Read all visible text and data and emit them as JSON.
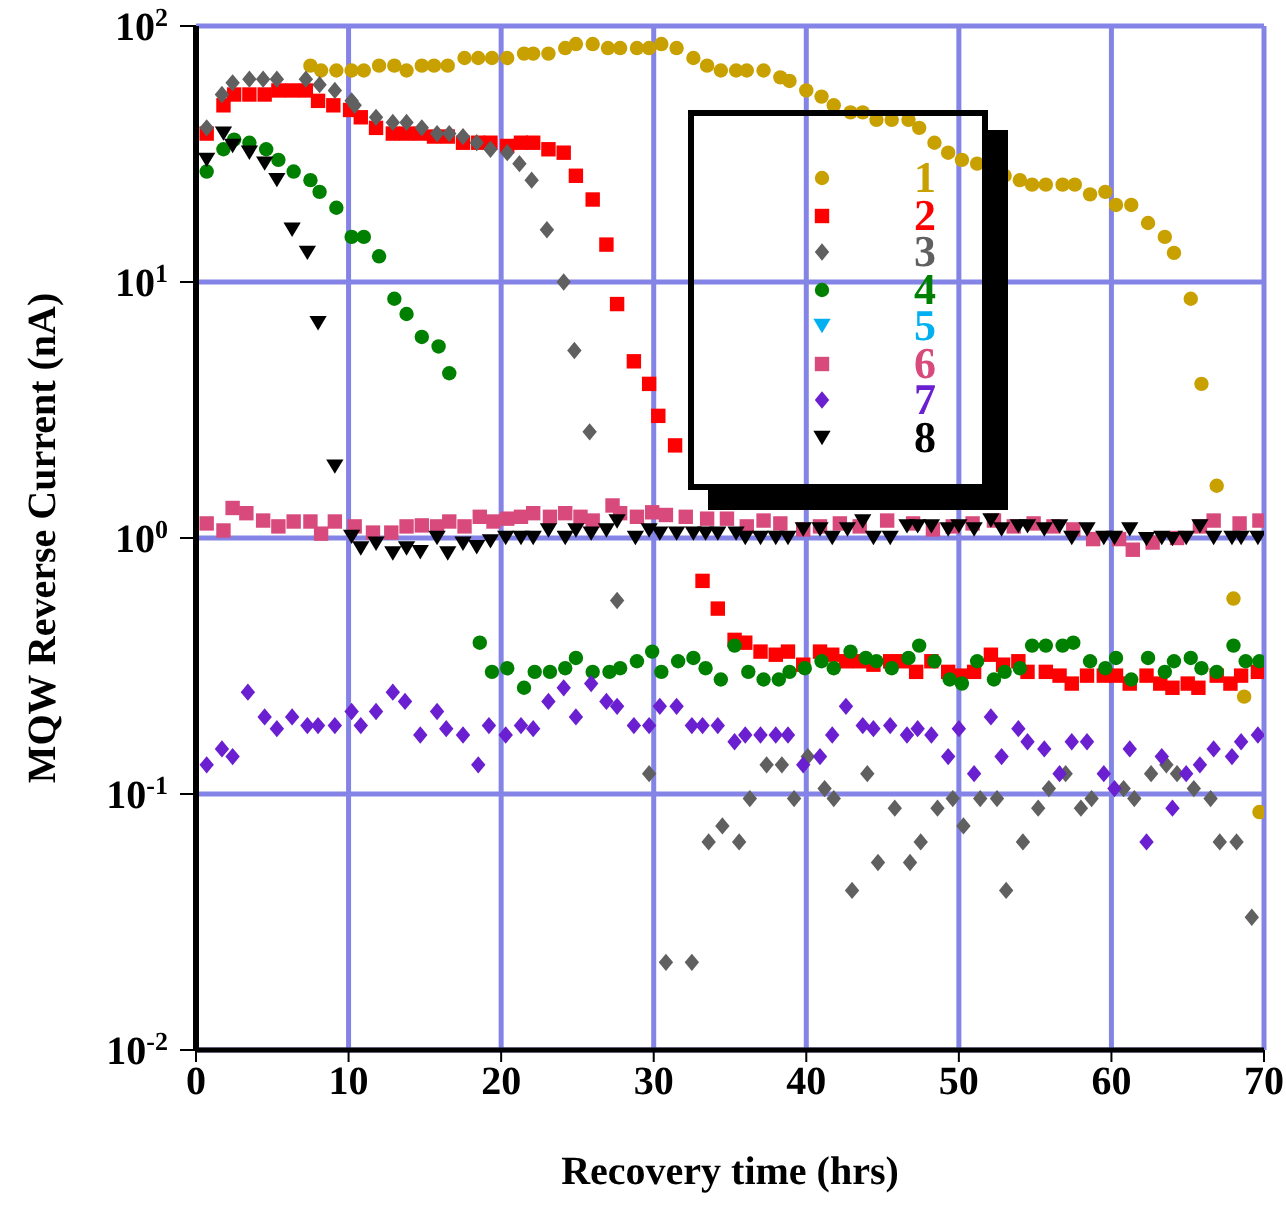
{
  "chart_data": {
    "type": "scatter",
    "xlabel": "Recovery time (hrs)",
    "ylabel": "MQW Reverse Current (nA)",
    "xlim": [
      0,
      70
    ],
    "xticks": [
      0,
      10,
      20,
      30,
      40,
      50,
      60,
      70
    ],
    "ylim": [
      0.01,
      100
    ],
    "log": "y",
    "yticks": [
      {
        "value": 0.01,
        "label": "10$^{-2}$"
      },
      {
        "value": 0.1,
        "label": "10$^{-1}$"
      },
      {
        "value": 1,
        "label": "10$^{0}$"
      },
      {
        "value": 10,
        "label": "10$^{1}$"
      },
      {
        "value": 100,
        "label": "10$^{2}$"
      }
    ],
    "grid": true,
    "legend": "top right",
    "series": [
      {
        "name": "1",
        "color": "#c8a000",
        "marker": "circle",
        "x": [
          7.5,
          8.2,
          9.2,
          10.2,
          11.0,
          12.0,
          13.0,
          13.8,
          14.8,
          15.6,
          16.5,
          17.6,
          18.5,
          19.4,
          20.4,
          21.5,
          22.1,
          23.1,
          24.2,
          24.9,
          26.0,
          27.0,
          27.8,
          28.9,
          29.7,
          30.5,
          31.5,
          32.6,
          33.5,
          34.4,
          35.4,
          36.1,
          37.2,
          38.3,
          38.9,
          40.0,
          41.0,
          41.8,
          42.9,
          43.7,
          44.6,
          45.6,
          46.7,
          47.4,
          48.4,
          49.3,
          50.2,
          51.2,
          53.0,
          54.0,
          54.8,
          55.7,
          56.8,
          57.6,
          58.6,
          59.6,
          60.3,
          61.3,
          62.4,
          63.5,
          64.1,
          65.2,
          65.9,
          66.9,
          68.0,
          68.7,
          69.7
        ],
        "values": [
          70,
          67,
          67,
          67,
          67,
          70,
          70,
          67,
          70,
          70,
          70,
          75,
          75,
          75,
          75,
          78,
          78,
          78,
          82,
          85,
          85,
          82,
          82,
          82,
          82,
          85,
          82,
          75,
          70,
          67,
          67,
          67,
          67,
          63,
          61,
          56,
          53,
          49,
          46,
          46,
          43,
          43,
          43,
          40,
          35,
          32,
          30,
          29,
          26,
          25,
          24,
          24,
          24,
          24,
          22,
          22.5,
          20,
          20,
          17,
          15,
          13,
          8.6,
          4.0,
          1.6,
          0.58,
          0.24,
          0.085
        ]
      },
      {
        "name": "2",
        "color": "#ff0000",
        "marker": "square",
        "x": [
          0.7,
          1.8,
          2.5,
          3.5,
          4.5,
          5.4,
          6.3,
          7.2,
          8.0,
          9.0,
          10.1,
          10.8,
          11.8,
          12.9,
          13.8,
          14.7,
          15.6,
          16.5,
          17.5,
          18.5,
          19.3,
          20.4,
          21.3,
          22.1,
          23.1,
          24.1,
          24.9,
          26.0,
          26.9,
          27.6,
          28.7,
          29.7,
          30.3,
          31.4,
          33.2,
          34.2,
          35.3,
          36.0,
          37.0,
          38.0,
          38.8,
          39.8,
          40.9,
          41.7,
          42.6,
          43.5,
          44.4,
          45.5,
          46.4,
          47.2,
          48.2,
          49.3,
          50.1,
          51.0,
          52.1,
          52.9,
          53.9,
          54.5,
          55.7,
          56.6,
          57.4,
          58.4,
          59.5,
          60.3,
          61.2,
          62.3,
          63.2,
          64.0,
          65.0,
          65.7,
          66.9,
          67.8,
          68.5,
          69.6
        ],
        "values": [
          38,
          49,
          54,
          54,
          54,
          56,
          56,
          56,
          51,
          49,
          47,
          44,
          40,
          38,
          38,
          38,
          37,
          37,
          35,
          35,
          35,
          34,
          35,
          35,
          33,
          32,
          26,
          21,
          14,
          8.2,
          4.9,
          4.0,
          3.0,
          2.3,
          0.68,
          0.53,
          0.4,
          0.39,
          0.36,
          0.35,
          0.36,
          0.32,
          0.36,
          0.35,
          0.33,
          0.33,
          0.32,
          0.33,
          0.33,
          0.3,
          0.33,
          0.3,
          0.29,
          0.3,
          0.35,
          0.32,
          0.33,
          0.3,
          0.3,
          0.29,
          0.27,
          0.29,
          0.29,
          0.29,
          0.27,
          0.29,
          0.27,
          0.26,
          0.27,
          0.26,
          0.29,
          0.27,
          0.29,
          0.3
        ]
      },
      {
        "name": "3",
        "color": "#606060",
        "marker": "diamond",
        "x": [
          0.7,
          1.7,
          2.4,
          3.5,
          4.4,
          5.3,
          7.2,
          8.1,
          9.1,
          10.2,
          10.4,
          11.8,
          12.9,
          13.8,
          14.8,
          15.8,
          16.6,
          17.5,
          18.4,
          19.3,
          20.4,
          21.2,
          22.0,
          23.0,
          24.1,
          24.8,
          25.8,
          27.6,
          29.7,
          30.8,
          32.5,
          33.6,
          34.5,
          35.6,
          36.3,
          37.4,
          38.4,
          39.2,
          40.1,
          41.2,
          41.8,
          43.0,
          44.0,
          44.7,
          45.8,
          46.8,
          47.5,
          48.6,
          49.6,
          50.3,
          51.4,
          52.5,
          53.1,
          54.2,
          55.2,
          55.9,
          57.0,
          58.0,
          58.7,
          60.8,
          61.5,
          62.6,
          63.6,
          64.3,
          65.4,
          66.5,
          67.1,
          68.2,
          69.2
        ],
        "values": [
          40,
          54,
          60,
          62,
          62,
          62,
          62,
          59,
          56,
          51,
          49,
          44,
          42,
          42,
          40,
          38,
          38,
          37,
          35,
          33,
          32,
          29,
          25,
          16,
          10,
          5.4,
          2.6,
          0.57,
          0.12,
          0.022,
          0.022,
          0.065,
          0.075,
          0.065,
          0.096,
          0.13,
          0.13,
          0.096,
          0.14,
          0.105,
          0.096,
          0.042,
          0.12,
          0.054,
          0.088,
          0.054,
          0.065,
          0.088,
          0.096,
          0.075,
          0.096,
          0.096,
          0.042,
          0.065,
          0.088,
          0.105,
          0.12,
          0.088,
          0.096,
          0.105,
          0.096,
          0.12,
          0.13,
          0.12,
          0.105,
          0.096,
          0.065,
          0.065,
          0.033
        ]
      },
      {
        "name": "4",
        "color": "#008000",
        "marker": "circle",
        "x": [
          0.7,
          1.8,
          2.5,
          3.5,
          4.6,
          5.4,
          6.4,
          7.5,
          8.1,
          9.2,
          10.2,
          11.0,
          12.0,
          13.0,
          13.8,
          14.8,
          15.9,
          16.6,
          18.6,
          19.4,
          20.4,
          21.5,
          22.2,
          23.2,
          24.2,
          24.9,
          26.0,
          27.1,
          27.8,
          28.9,
          29.9,
          30.5,
          31.6,
          32.6,
          33.4,
          34.4,
          35.3,
          36.2,
          37.2,
          38.2,
          38.9,
          39.9,
          41.0,
          41.8,
          42.9,
          43.9,
          44.6,
          45.6,
          46.7,
          47.4,
          48.4,
          49.4,
          50.2,
          51.2,
          52.3,
          53.0,
          54.0,
          54.8,
          55.7,
          56.8,
          57.5,
          58.6,
          59.6,
          60.3,
          61.3,
          62.4,
          63.5,
          64.1,
          65.2,
          65.9,
          66.9,
          68.0,
          68.8,
          69.7
        ],
        "values": [
          27,
          33,
          36,
          35,
          33,
          30,
          27,
          25,
          22.5,
          19.5,
          15,
          15,
          12.6,
          8.6,
          7.5,
          6.1,
          5.6,
          4.4,
          0.39,
          0.3,
          0.31,
          0.26,
          0.3,
          0.3,
          0.31,
          0.34,
          0.3,
          0.3,
          0.31,
          0.33,
          0.36,
          0.3,
          0.33,
          0.34,
          0.31,
          0.28,
          0.38,
          0.3,
          0.28,
          0.28,
          0.3,
          0.31,
          0.33,
          0.31,
          0.36,
          0.34,
          0.33,
          0.31,
          0.34,
          0.38,
          0.33,
          0.28,
          0.27,
          0.33,
          0.28,
          0.3,
          0.31,
          0.38,
          0.38,
          0.38,
          0.39,
          0.33,
          0.31,
          0.34,
          0.28,
          0.34,
          0.3,
          0.33,
          0.34,
          0.31,
          0.3,
          0.38,
          0.33,
          0.33
        ]
      },
      {
        "name": "5",
        "color": "#00b0f0",
        "marker": "triangle"
      },
      {
        "name": "6",
        "color": "#d84a7c",
        "marker": "square",
        "x": [
          0.7,
          1.8,
          2.4,
          3.3,
          4.4,
          5.4,
          6.4,
          7.5,
          8.2,
          9.1,
          10.4,
          11.6,
          12.8,
          13.8,
          14.8,
          15.8,
          16.6,
          17.6,
          18.6,
          19.5,
          20.4,
          21.3,
          22.1,
          23.2,
          24.2,
          25.2,
          26.0,
          27.3,
          27.8,
          28.9,
          29.9,
          30.8,
          32.1,
          33.5,
          34.8,
          36.1,
          37.2,
          38.3,
          39.8,
          40.9,
          42.2,
          43.5,
          45.3,
          47.0,
          48.3,
          49.6,
          50.9,
          52.3,
          53.6,
          54.9,
          56.2,
          57.5,
          58.8,
          60.5,
          61.4,
          62.7,
          64.3,
          65.8,
          66.7,
          68.4,
          69.7
        ],
        "values": [
          1.14,
          1.07,
          1.31,
          1.25,
          1.17,
          1.11,
          1.16,
          1.16,
          1.04,
          1.16,
          1.11,
          1.05,
          1.05,
          1.11,
          1.12,
          1.11,
          1.16,
          1.11,
          1.21,
          1.16,
          1.19,
          1.21,
          1.25,
          1.21,
          1.25,
          1.21,
          1.17,
          1.34,
          1.25,
          1.21,
          1.26,
          1.23,
          1.21,
          1.19,
          1.19,
          1.11,
          1.17,
          1.14,
          1.08,
          1.11,
          1.14,
          1.11,
          1.17,
          1.14,
          1.08,
          1.11,
          1.14,
          1.17,
          1.11,
          1.14,
          1.11,
          1.08,
          0.99,
          0.99,
          0.9,
          0.96,
          1.0,
          1.11,
          1.17,
          1.14,
          1.17
        ]
      },
      {
        "name": "7",
        "color": "#6a1fd0",
        "marker": "diamond",
        "x": [
          0.7,
          1.7,
          2.4,
          3.4,
          4.5,
          5.3,
          6.3,
          7.3,
          8.0,
          9.1,
          10.2,
          10.8,
          11.8,
          12.9,
          13.7,
          14.7,
          15.8,
          16.4,
          17.5,
          18.5,
          19.2,
          20.3,
          21.3,
          22.1,
          23.1,
          24.1,
          24.9,
          25.9,
          26.9,
          27.6,
          28.7,
          29.7,
          30.4,
          31.5,
          32.5,
          33.2,
          34.2,
          35.3,
          36.0,
          37.0,
          38.0,
          38.8,
          39.8,
          40.9,
          41.7,
          42.6,
          43.7,
          44.4,
          45.5,
          46.6,
          47.3,
          48.2,
          49.3,
          50.0,
          51.0,
          52.1,
          52.8,
          53.9,
          54.5,
          55.6,
          56.6,
          57.4,
          58.4,
          59.5,
          60.2,
          61.2,
          62.3,
          63.3,
          64.0,
          64.9,
          65.8,
          66.7,
          67.9,
          68.5,
          69.6
        ],
        "values": [
          0.13,
          0.15,
          0.14,
          0.25,
          0.2,
          0.18,
          0.2,
          0.185,
          0.185,
          0.185,
          0.21,
          0.185,
          0.21,
          0.25,
          0.23,
          0.17,
          0.21,
          0.18,
          0.17,
          0.13,
          0.185,
          0.17,
          0.185,
          0.18,
          0.23,
          0.26,
          0.2,
          0.27,
          0.23,
          0.22,
          0.185,
          0.185,
          0.22,
          0.22,
          0.185,
          0.185,
          0.185,
          0.16,
          0.17,
          0.17,
          0.17,
          0.17,
          0.13,
          0.14,
          0.17,
          0.22,
          0.185,
          0.18,
          0.185,
          0.17,
          0.18,
          0.17,
          0.14,
          0.18,
          0.12,
          0.2,
          0.14,
          0.18,
          0.16,
          0.15,
          0.12,
          0.16,
          0.16,
          0.12,
          0.105,
          0.15,
          0.065,
          0.14,
          0.088,
          0.12,
          0.13,
          0.15,
          0.14,
          0.16,
          0.17
        ]
      },
      {
        "name": "8",
        "color": "#000000",
        "marker": "triangle",
        "x": [
          0.7,
          1.8,
          2.4,
          3.5,
          4.5,
          5.3,
          6.3,
          7.3,
          8.0,
          9.1,
          10.2,
          10.8,
          11.8,
          12.9,
          13.8,
          14.7,
          15.8,
          16.5,
          17.5,
          18.4,
          19.3,
          20.3,
          21.3,
          22.1,
          23.1,
          24.2,
          24.9,
          25.9,
          26.9,
          27.6,
          28.8,
          29.7,
          30.4,
          31.5,
          32.6,
          33.4,
          34.2,
          35.4,
          36.0,
          37.0,
          38.0,
          38.8,
          39.8,
          40.9,
          41.7,
          42.7,
          43.7,
          44.4,
          45.5,
          46.6,
          47.3,
          48.2,
          49.3,
          50.0,
          51.0,
          52.1,
          52.8,
          53.9,
          54.5,
          55.6,
          56.6,
          57.4,
          58.4,
          59.5,
          60.2,
          61.2,
          62.3,
          63.3,
          64.0,
          64.9,
          65.8,
          66.7,
          67.9,
          68.5,
          69.6
        ],
        "values": [
          30,
          38,
          34,
          32,
          29,
          25,
          16,
          13,
          6.9,
          1.9,
          1.01,
          0.91,
          0.95,
          0.87,
          0.91,
          0.88,
          1.0,
          0.87,
          0.95,
          0.92,
          0.97,
          1.0,
          1.0,
          1.0,
          1.07,
          1.0,
          1.07,
          1.04,
          1.07,
          1.16,
          1.0,
          1.07,
          1.04,
          1.04,
          1.04,
          1.04,
          1.04,
          1.04,
          1.0,
          1.0,
          1.0,
          1.0,
          1.08,
          1.08,
          1.0,
          1.08,
          1.16,
          1.0,
          1.0,
          1.11,
          1.11,
          1.11,
          1.08,
          1.11,
          1.08,
          1.17,
          1.08,
          1.11,
          1.11,
          1.08,
          1.11,
          1.0,
          1.08,
          1.0,
          1.0,
          1.08,
          0.99,
          1.0,
          0.99,
          1.0,
          1.11,
          1.0,
          1.0,
          1.0,
          1.0
        ]
      }
    ]
  }
}
